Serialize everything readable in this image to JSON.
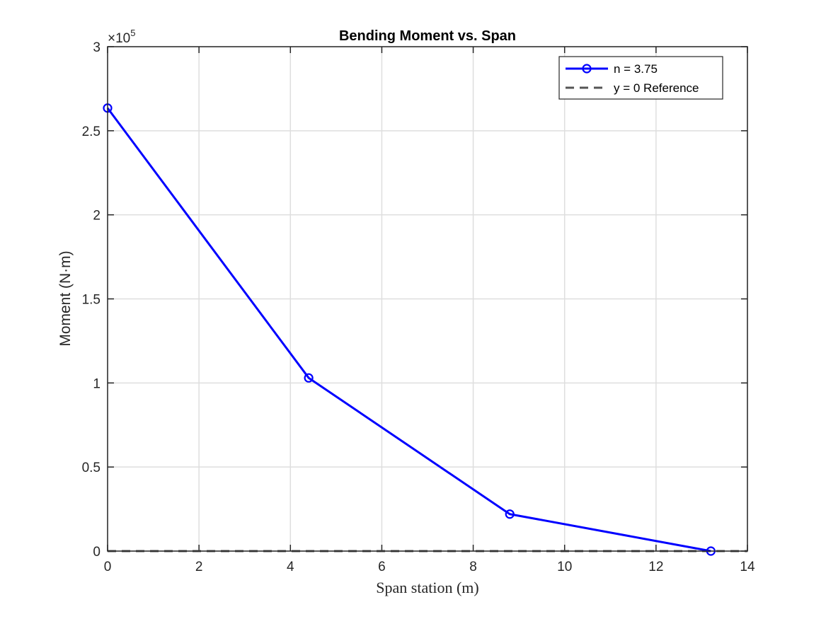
{
  "chart_data": {
    "type": "line",
    "title": "Bending Moment vs. Span",
    "xlabel": "Span station (m)",
    "ylabel": "Moment (N·m)",
    "xlim": [
      0,
      14
    ],
    "ylim": [
      0,
      300000
    ],
    "xticks": [
      0,
      2,
      4,
      6,
      8,
      10,
      12,
      14
    ],
    "yticks": [
      0,
      50000,
      100000,
      150000,
      200000,
      250000,
      300000
    ],
    "ytick_labels": [
      "0",
      "0.5",
      "1",
      "1.5",
      "2",
      "2.5",
      "3"
    ],
    "y_exponent_prefix": "×10",
    "y_exponent_power": "5",
    "grid": true,
    "legend_position": "top-right",
    "series": [
      {
        "name": "n = 3.75",
        "color": "#0000ff",
        "style": "solid",
        "marker": "circle",
        "x": [
          0,
          4.4,
          8.8,
          13.2
        ],
        "y": [
          263500,
          103000,
          22000,
          0
        ]
      },
      {
        "name": "y = 0 Reference",
        "color": "#555555",
        "style": "dashed",
        "marker": "none",
        "x": [
          0,
          14
        ],
        "y": [
          0,
          0
        ]
      }
    ]
  }
}
